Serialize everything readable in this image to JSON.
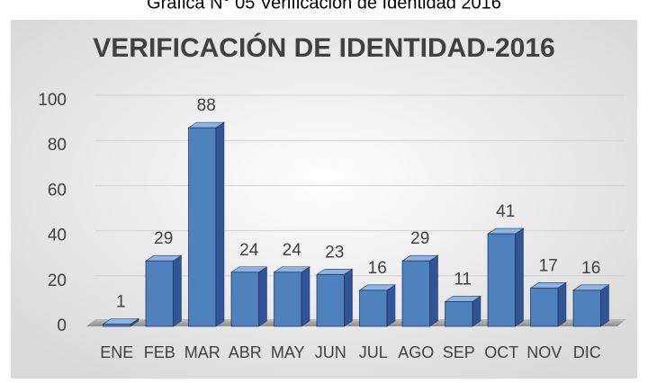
{
  "caption": "Gráfica N° 05 Verificación de Identidad 2016",
  "chart_data": {
    "type": "bar3d",
    "title": "VERIFICACIÓN DE IDENTIDAD-2016",
    "categories": [
      "ENE",
      "FEB",
      "MAR",
      "ABR",
      "MAY",
      "JUN",
      "JUL",
      "AGO",
      "SEP",
      "OCT",
      "NOV",
      "DIC"
    ],
    "values": [
      1,
      29,
      88,
      24,
      24,
      23,
      16,
      29,
      11,
      41,
      17,
      16
    ],
    "color": "#4f81bd",
    "ylim": [
      0,
      100
    ],
    "yticks": [
      0,
      20,
      40,
      60,
      80,
      100
    ],
    "grid": true
  }
}
